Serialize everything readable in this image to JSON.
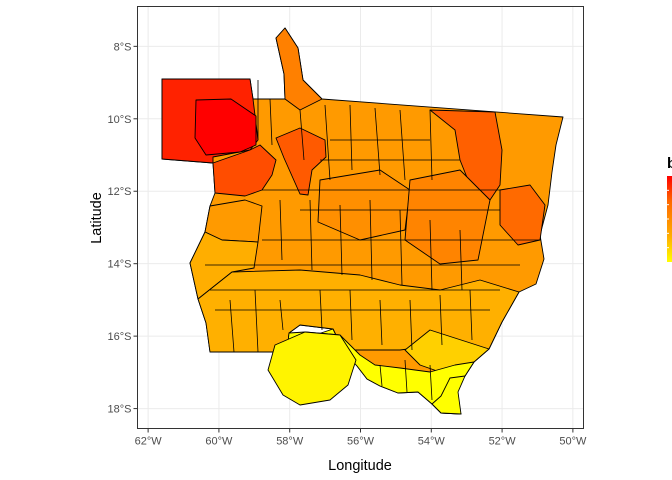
{
  "map": {
    "x_axis": {
      "title": "Longitude",
      "ticks": [
        "62°W",
        "60°W",
        "58°W",
        "56°W",
        "54°W",
        "52°W",
        "50°W"
      ],
      "tick_values": [
        -62,
        -60,
        -58,
        -56,
        -54,
        -52,
        -50
      ],
      "range": [
        -62.3,
        -49.7
      ]
    },
    "y_axis": {
      "title": "Latitude",
      "ticks": [
        "8°S",
        "10°S",
        "12°S",
        "14°S",
        "16°S",
        "18°S"
      ],
      "tick_values": [
        -8,
        -10,
        -12,
        -14,
        -16,
        -18
      ],
      "range": [
        -18.55,
        -6.9
      ]
    },
    "legend": {
      "title": "b",
      "placement": "right",
      "colors": [
        "#FF0000",
        "#FF4500",
        "#FF7A00",
        "#FFA200",
        "#FFC600",
        "#FFFF00"
      ]
    },
    "panel": {
      "background": "#FFFFFF",
      "grid": true,
      "grid_color": "#EBEBEB",
      "border_color": "#333333"
    },
    "fill_scale": {
      "low": "#FFFF00",
      "high": "#FF0000"
    }
  }
}
